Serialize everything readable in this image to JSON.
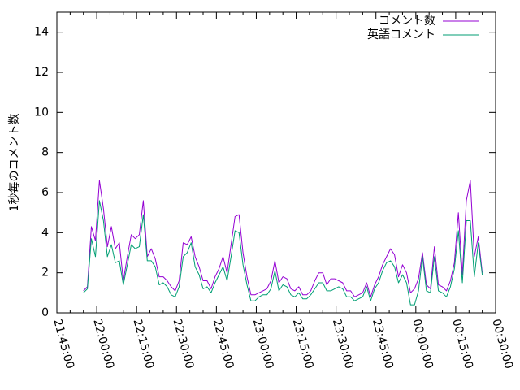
{
  "chart_data": {
    "type": "line",
    "ylabel": "1秒毎のコメント数",
    "xlabel": "",
    "ylim": [
      0,
      15
    ],
    "xlim": [
      "21:45:00",
      "00:30:00"
    ],
    "y_ticks": [
      0,
      2,
      4,
      6,
      8,
      10,
      12,
      14
    ],
    "x_ticks": [
      "21:45:00",
      "22:00:00",
      "22:15:00",
      "22:30:00",
      "22:45:00",
      "23:00:00",
      "23:15:00",
      "23:30:00",
      "23:45:00",
      "00:00:00",
      "00:15:00",
      "00:30:00"
    ],
    "legend_position": "top-right",
    "grid": false,
    "series": [
      {
        "name": "コメント数",
        "color": "#9400d3",
        "x": [
          "21:55:00",
          "21:56:30",
          "21:58:00",
          "21:59:30",
          "22:01:00",
          "22:02:30",
          "22:04:00",
          "22:05:30",
          "22:07:00",
          "22:08:30",
          "22:10:00",
          "22:11:30",
          "22:13:00",
          "22:14:30",
          "22:16:00",
          "22:17:30",
          "22:19:00",
          "22:20:30",
          "22:22:00",
          "22:23:30",
          "22:25:00",
          "22:26:30",
          "22:28:00",
          "22:29:30",
          "22:31:00",
          "22:32:30",
          "22:34:00",
          "22:35:30",
          "22:37:00",
          "22:38:30",
          "22:40:00",
          "22:41:30",
          "22:43:00",
          "22:44:30",
          "22:46:00",
          "22:47:30",
          "22:49:00",
          "22:50:30",
          "22:52:00",
          "22:53:30",
          "22:55:00",
          "22:56:30",
          "22:58:00",
          "22:59:30",
          "23:01:00",
          "23:02:30",
          "23:04:00",
          "23:05:30",
          "23:07:00",
          "23:08:30",
          "23:10:00",
          "23:11:30",
          "23:13:00",
          "23:14:30",
          "23:16:00",
          "23:17:30",
          "23:19:00",
          "23:20:30",
          "23:22:00",
          "23:23:30",
          "23:25:00",
          "23:26:30",
          "23:28:00",
          "23:29:30",
          "23:31:00",
          "23:32:30",
          "23:34:00",
          "23:35:30",
          "23:37:00",
          "23:38:30",
          "23:40:00",
          "23:41:30",
          "23:43:00",
          "23:44:30",
          "23:46:00",
          "23:47:30",
          "23:49:00",
          "23:50:30",
          "23:52:00",
          "23:53:30",
          "23:55:00",
          "23:56:30",
          "23:58:00",
          "23:59:30",
          "00:01:00",
          "00:02:30",
          "00:04:00",
          "00:05:30",
          "00:07:00",
          "00:08:30",
          "00:10:00",
          "00:11:30",
          "00:13:00",
          "00:14:30",
          "00:16:00",
          "00:17:30",
          "00:19:00",
          "00:20:30",
          "00:22:00",
          "00:23:30",
          "00:25:00"
        ],
        "y": [
          1.1,
          1.3,
          4.3,
          3.6,
          6.6,
          5.2,
          3.3,
          4.3,
          3.2,
          3.5,
          1.6,
          2.8,
          3.9,
          3.7,
          3.9,
          5.6,
          2.8,
          3.2,
          2.7,
          1.8,
          1.8,
          1.6,
          1.3,
          1.1,
          1.6,
          3.5,
          3.4,
          3.8,
          2.8,
          2.3,
          1.6,
          1.6,
          1.2,
          1.8,
          2.2,
          2.8,
          2.0,
          3.4,
          4.8,
          4.9,
          3.0,
          1.8,
          0.9,
          0.9,
          1.0,
          1.1,
          1.2,
          1.6,
          2.6,
          1.5,
          1.8,
          1.7,
          1.2,
          1.1,
          1.3,
          0.9,
          0.9,
          1.1,
          1.6,
          2.0,
          2.0,
          1.4,
          1.7,
          1.7,
          1.6,
          1.5,
          1.1,
          1.1,
          0.8,
          0.9,
          1.0,
          1.5,
          0.8,
          1.4,
          1.8,
          2.4,
          2.8,
          3.2,
          2.9,
          1.8,
          2.4,
          2.0,
          1.0,
          1.2,
          1.7,
          3.0,
          1.4,
          1.2,
          3.3,
          1.4,
          1.3,
          1.1,
          1.6,
          2.5,
          5.0,
          1.9,
          5.6,
          6.6,
          2.8,
          3.8,
          2.0
        ]
      },
      {
        "name": "英語コメント",
        "color": "#009e73",
        "x": [
          "21:55:00",
          "21:56:30",
          "21:58:00",
          "21:59:30",
          "22:01:00",
          "22:02:30",
          "22:04:00",
          "22:05:30",
          "22:07:00",
          "22:08:30",
          "22:10:00",
          "22:11:30",
          "22:13:00",
          "22:14:30",
          "22:16:00",
          "22:17:30",
          "22:19:00",
          "22:20:30",
          "22:22:00",
          "22:23:30",
          "22:25:00",
          "22:26:30",
          "22:28:00",
          "22:29:30",
          "22:31:00",
          "22:32:30",
          "22:34:00",
          "22:35:30",
          "22:37:00",
          "22:38:30",
          "22:40:00",
          "22:41:30",
          "22:43:00",
          "22:44:30",
          "22:46:00",
          "22:47:30",
          "22:49:00",
          "22:50:30",
          "22:52:00",
          "22:53:30",
          "22:55:00",
          "22:56:30",
          "22:58:00",
          "22:59:30",
          "23:01:00",
          "23:02:30",
          "23:04:00",
          "23:05:30",
          "23:07:00",
          "23:08:30",
          "23:10:00",
          "23:11:30",
          "23:13:00",
          "23:14:30",
          "23:16:00",
          "23:17:30",
          "23:19:00",
          "23:20:30",
          "23:22:00",
          "23:23:30",
          "23:25:00",
          "23:26:30",
          "23:28:00",
          "23:29:30",
          "23:31:00",
          "23:32:30",
          "23:34:00",
          "23:35:30",
          "23:37:00",
          "23:38:30",
          "23:40:00",
          "23:41:30",
          "23:43:00",
          "23:44:30",
          "23:46:00",
          "23:47:30",
          "23:49:00",
          "23:50:30",
          "23:52:00",
          "23:53:30",
          "23:55:00",
          "23:56:30",
          "23:58:00",
          "23:59:30",
          "00:01:00",
          "00:02:30",
          "00:04:00",
          "00:05:30",
          "00:07:00",
          "00:08:30",
          "00:10:00",
          "00:11:30",
          "00:13:00",
          "00:14:30",
          "00:16:00",
          "00:17:30",
          "00:19:00",
          "00:20:30",
          "00:22:00",
          "00:23:30",
          "00:25:00"
        ],
        "y": [
          1.0,
          1.2,
          3.7,
          2.8,
          5.6,
          4.6,
          2.8,
          3.4,
          2.5,
          2.6,
          1.4,
          2.4,
          3.4,
          3.2,
          3.3,
          4.9,
          2.6,
          2.6,
          2.3,
          1.4,
          1.5,
          1.3,
          0.9,
          0.8,
          1.3,
          2.8,
          3.0,
          3.5,
          2.3,
          1.9,
          1.2,
          1.3,
          1.0,
          1.5,
          1.9,
          2.3,
          1.6,
          2.8,
          4.1,
          4.0,
          2.4,
          1.4,
          0.6,
          0.6,
          0.8,
          0.9,
          0.9,
          1.2,
          2.1,
          1.1,
          1.4,
          1.3,
          0.9,
          0.8,
          1.0,
          0.7,
          0.7,
          0.9,
          1.2,
          1.5,
          1.5,
          1.1,
          1.1,
          1.2,
          1.3,
          1.2,
          0.8,
          0.8,
          0.6,
          0.7,
          0.8,
          1.3,
          0.6,
          1.2,
          1.5,
          2.1,
          2.5,
          2.6,
          2.3,
          1.5,
          1.9,
          1.5,
          0.4,
          0.4,
          1.1,
          2.8,
          1.1,
          1.0,
          2.8,
          1.1,
          1.0,
          0.8,
          1.3,
          2.2,
          4.1,
          1.5,
          4.6,
          4.6,
          1.8,
          3.5,
          1.9
        ]
      }
    ]
  }
}
